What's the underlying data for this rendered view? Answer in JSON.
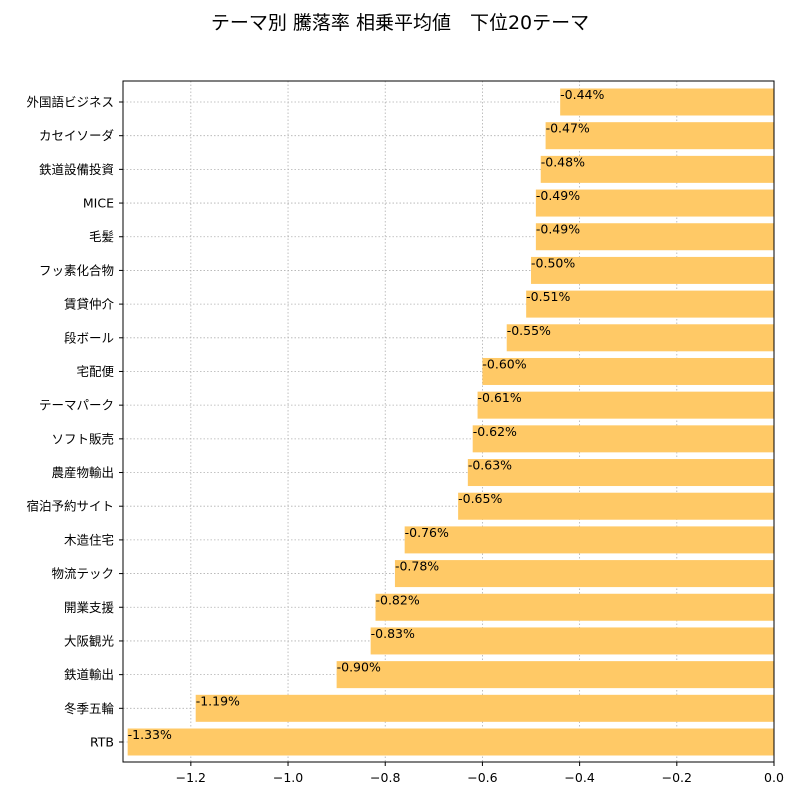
{
  "chart_data": {
    "type": "bar",
    "orientation": "horizontal",
    "title": "テーマ別 騰落率 相乗平均値　下位20テーマ",
    "xlabel": "",
    "ylabel": "",
    "xlim": [
      -1.33,
      0.0
    ],
    "xticks": [
      -1.2,
      -1.0,
      -0.8,
      -0.6,
      -0.4,
      -0.2,
      0.0
    ],
    "xtick_labels": [
      "−1.2",
      "−1.0",
      "−0.8",
      "−0.6",
      "−0.4",
      "−0.2",
      "0.0"
    ],
    "grid": true,
    "bar_color": "#FFC966",
    "categories": [
      "外国語ビジネス",
      "カセイソーダ",
      "鉄道設備投資",
      "MICE",
      "毛髪",
      "フッ素化合物",
      "賃貸仲介",
      "段ボール",
      "宅配便",
      "テーマパーク",
      "ソフト販売",
      "農産物輸出",
      "宿泊予約サイト",
      "木造住宅",
      "物流テック",
      "開業支援",
      "大阪観光",
      "鉄道輸出",
      "冬季五輪",
      "RTB"
    ],
    "values": [
      -0.44,
      -0.47,
      -0.48,
      -0.49,
      -0.49,
      -0.5,
      -0.51,
      -0.55,
      -0.6,
      -0.61,
      -0.62,
      -0.63,
      -0.65,
      -0.76,
      -0.78,
      -0.82,
      -0.83,
      -0.9,
      -1.19,
      -1.33
    ],
    "data_labels": [
      "-0.44%",
      "-0.47%",
      "-0.48%",
      "-0.49%",
      "-0.49%",
      "-0.50%",
      "-0.51%",
      "-0.55%",
      "-0.60%",
      "-0.61%",
      "-0.62%",
      "-0.63%",
      "-0.65%",
      "-0.76%",
      "-0.78%",
      "-0.82%",
      "-0.83%",
      "-0.90%",
      "-1.19%",
      "-1.33%"
    ]
  }
}
